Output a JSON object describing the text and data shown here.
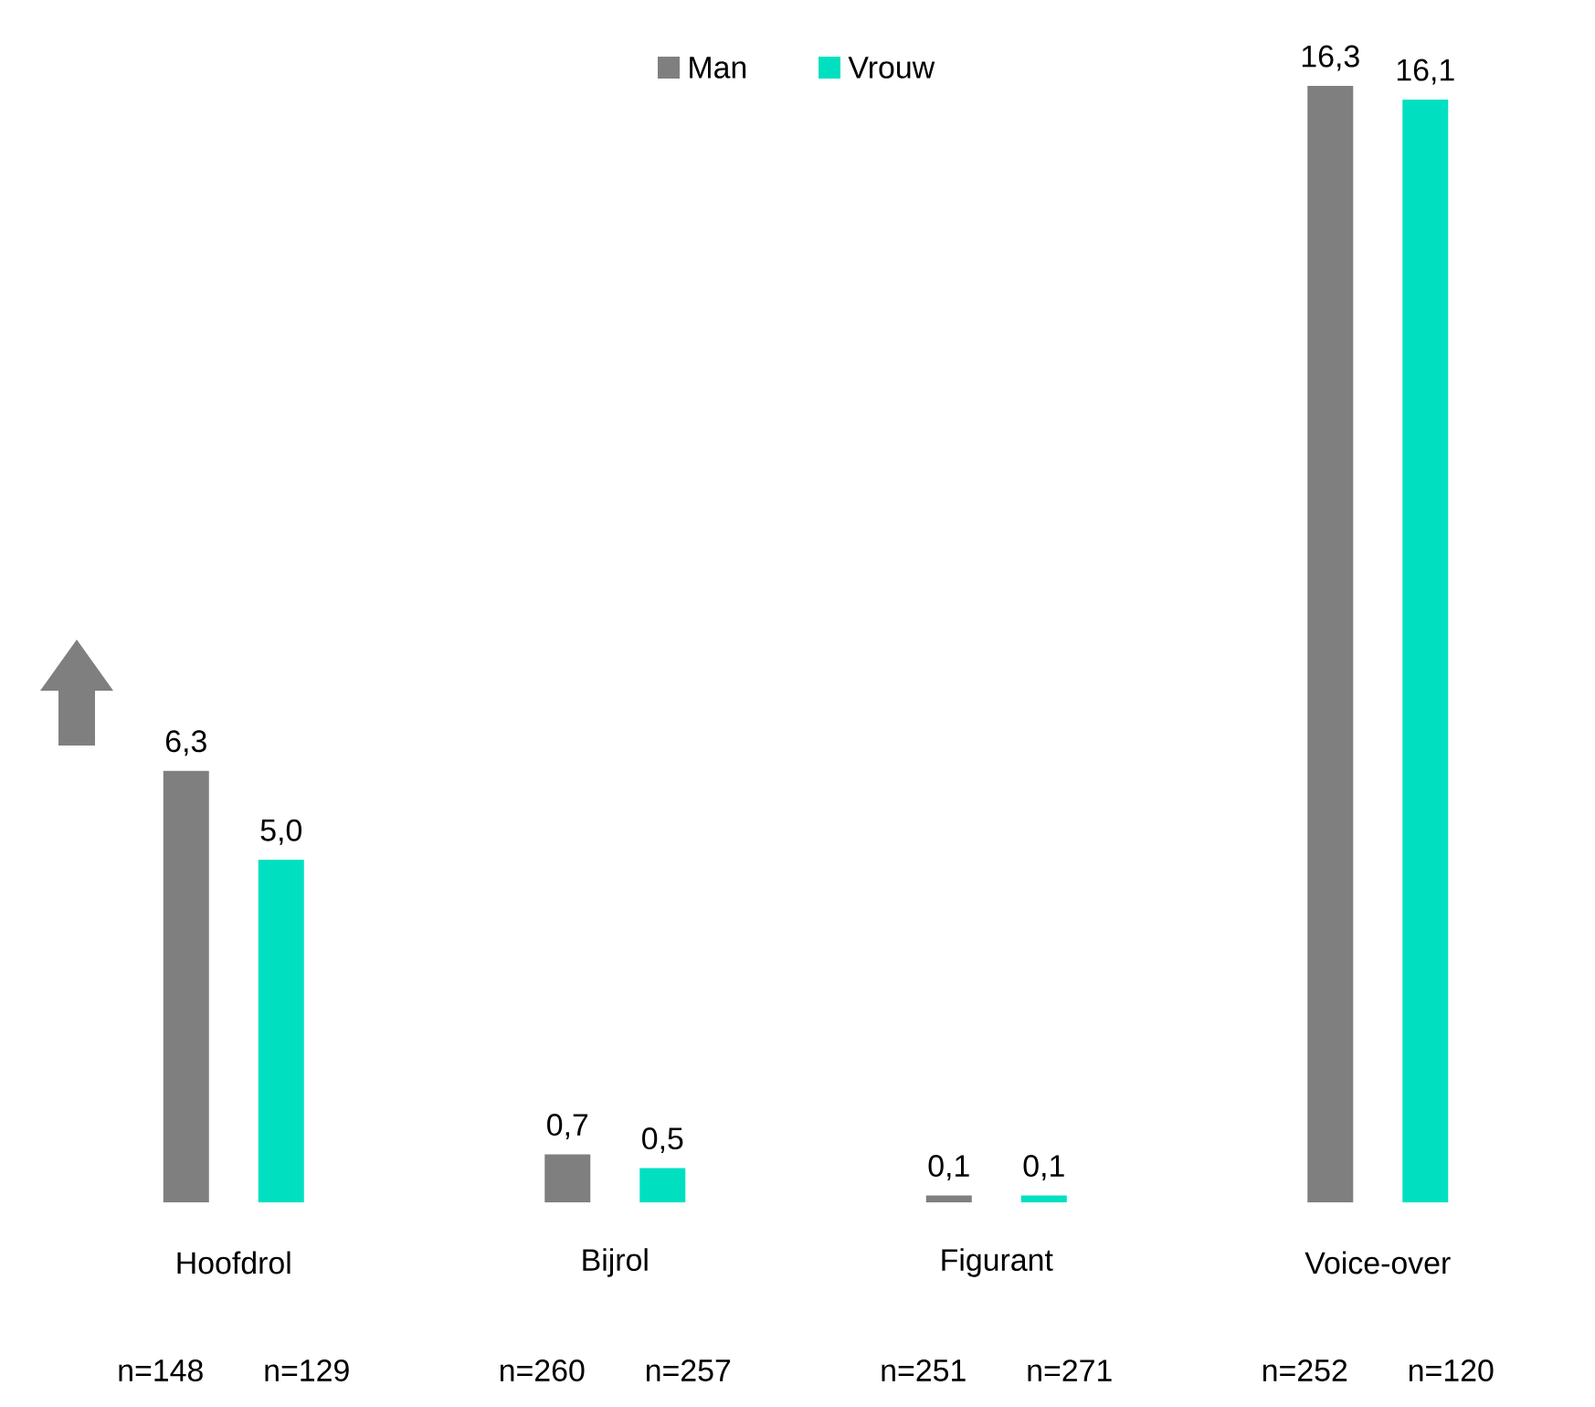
{
  "chart_data": {
    "type": "bar",
    "categories": [
      "Hoofdrol",
      "Bijrol",
      "Figurant",
      "Voice-over"
    ],
    "series": [
      {
        "name": "Man",
        "color": "#7f7f7f",
        "values": [
          6.3,
          0.7,
          0.1,
          16.3
        ],
        "value_labels": [
          "6,3",
          "0,7",
          "0,1",
          "16,3"
        ]
      },
      {
        "name": "Vrouw",
        "color": "#00e0c0",
        "values": [
          5.0,
          0.5,
          0.1,
          16.1
        ],
        "value_labels": [
          "5,0",
          "0,5",
          "0,1",
          "16,1"
        ]
      }
    ],
    "legend": "top",
    "annotations": [
      "n=148",
      "n=129",
      "n=260",
      "n=257",
      "n=251",
      "n=271",
      "n=252",
      "n=120"
    ]
  }
}
